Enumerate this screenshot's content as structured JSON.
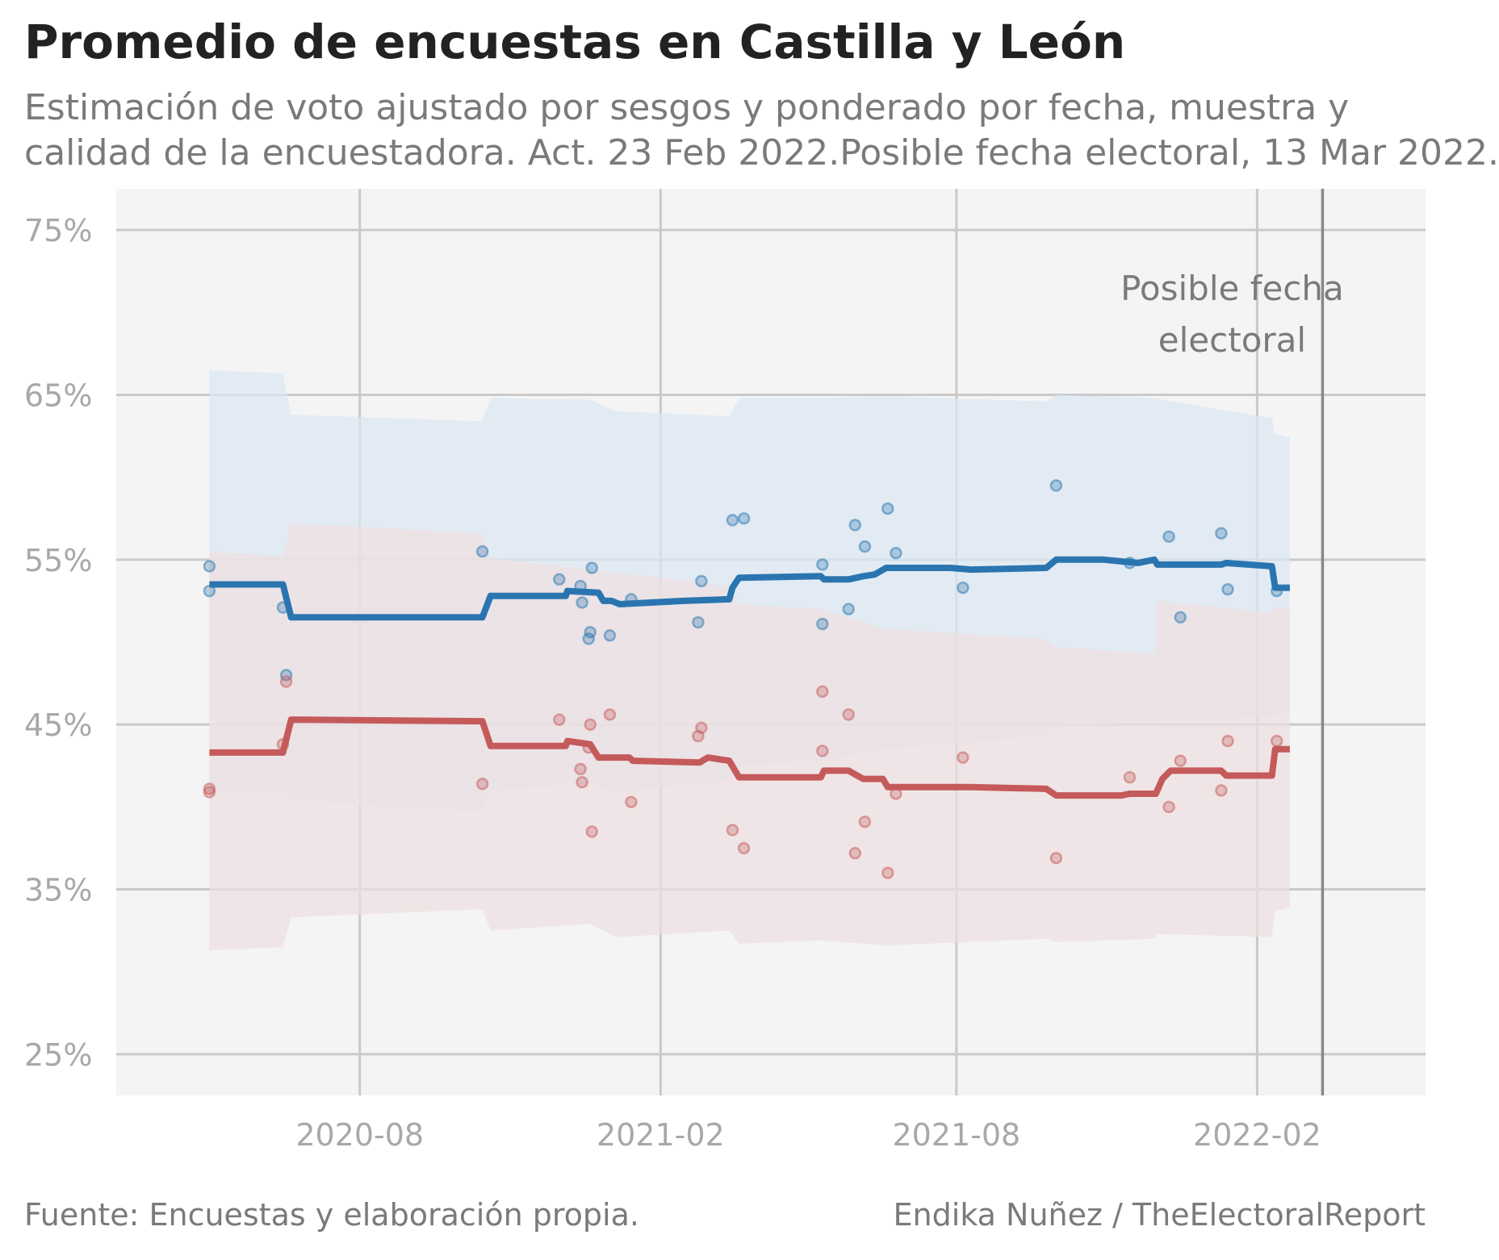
{
  "chart_data": {
    "type": "line",
    "title": "Promedio de encuestas en Castilla y León",
    "subtitle_lines": [
      "Estimación de voto ajustado por sesgos y ponderado por fecha, muestra y",
      "calidad de la encuestadora. Act. 23 Feb 2022.Posible fecha electoral, 13 Mar 2022."
    ],
    "xlabel": "",
    "ylabel": "",
    "xlim": [
      "2020-03-05",
      "2022-05-15"
    ],
    "ylim": [
      22.5,
      77.5
    ],
    "x_ticks": [
      {
        "date": "2020-08-01",
        "label": "2020-08"
      },
      {
        "date": "2021-02-01",
        "label": "2021-02"
      },
      {
        "date": "2021-08-01",
        "label": "2021-08"
      },
      {
        "date": "2022-02-01",
        "label": "2022-02"
      }
    ],
    "y_ticks": [
      {
        "value": 25,
        "label": "25%"
      },
      {
        "value": 35,
        "label": "35%"
      },
      {
        "value": 45,
        "label": "45%"
      },
      {
        "value": 55,
        "label": "55%"
      },
      {
        "value": 65,
        "label": "65%"
      },
      {
        "value": 75,
        "label": "75%"
      }
    ],
    "grid": true,
    "legend": "none",
    "annotation": {
      "date": "2022-03-13",
      "text_lines": [
        "Posible fecha",
        "electoral"
      ]
    },
    "series": [
      {
        "color": "#2a75b0",
        "band_color": "#dbe7f2",
        "line": [
          [
            "2020-05-01",
            53.5
          ],
          [
            "2020-06-15",
            53.5
          ],
          [
            "2020-06-20",
            51.5
          ],
          [
            "2020-10-15",
            51.5
          ],
          [
            "2020-10-20",
            52.8
          ],
          [
            "2020-12-05",
            52.8
          ],
          [
            "2020-12-06",
            53.1
          ],
          [
            "2020-12-25",
            53.0
          ],
          [
            "2020-12-28",
            52.5
          ],
          [
            "2021-01-02",
            52.5
          ],
          [
            "2021-01-07",
            52.3
          ],
          [
            "2021-02-15",
            52.5
          ],
          [
            "2021-03-15",
            52.6
          ],
          [
            "2021-03-17",
            53.3
          ],
          [
            "2021-03-21",
            53.9
          ],
          [
            "2021-05-10",
            54.0
          ],
          [
            "2021-05-12",
            53.8
          ],
          [
            "2021-05-27",
            53.8
          ],
          [
            "2021-06-05",
            54.0
          ],
          [
            "2021-06-12",
            54.1
          ],
          [
            "2021-06-19",
            54.5
          ],
          [
            "2021-07-28",
            54.5
          ],
          [
            "2021-08-10",
            54.4
          ],
          [
            "2021-09-25",
            54.5
          ],
          [
            "2021-10-01",
            55.0
          ],
          [
            "2021-10-30",
            55.0
          ],
          [
            "2021-11-20",
            54.8
          ],
          [
            "2021-11-30",
            55.0
          ],
          [
            "2021-12-02",
            54.7
          ],
          [
            "2022-01-10",
            54.7
          ],
          [
            "2022-01-13",
            54.8
          ],
          [
            "2022-02-10",
            54.6
          ],
          [
            "2022-02-12",
            53.3
          ],
          [
            "2022-02-21",
            53.3
          ]
        ],
        "band": [
          [
            "2020-05-01",
            66.5,
            40.8
          ],
          [
            "2020-06-15",
            66.3,
            40.9
          ],
          [
            "2020-06-20",
            63.8,
            40.4
          ],
          [
            "2020-10-15",
            63.4,
            39.7
          ],
          [
            "2020-10-20",
            64.8,
            41.0
          ],
          [
            "2020-12-20",
            64.7,
            41.4
          ],
          [
            "2021-01-05",
            64.0,
            40.9
          ],
          [
            "2021-03-15",
            63.7,
            41.6
          ],
          [
            "2021-03-21",
            64.8,
            42.5
          ],
          [
            "2021-05-10",
            64.8,
            42.8
          ],
          [
            "2021-06-19",
            64.9,
            43.5
          ],
          [
            "2021-09-25",
            64.6,
            44.3
          ],
          [
            "2021-10-01",
            65.0,
            44.8
          ],
          [
            "2021-11-30",
            64.8,
            45.2
          ],
          [
            "2022-01-15",
            64.0,
            45.4
          ],
          [
            "2022-02-10",
            63.6,
            45.5
          ],
          [
            "2022-02-12",
            62.6,
            45.5
          ],
          [
            "2022-02-21",
            62.4,
            45.7
          ]
        ],
        "polls": [
          [
            "2020-05-01",
            54.6
          ],
          [
            "2020-05-01",
            53.1
          ],
          [
            "2020-06-15",
            52.1
          ],
          [
            "2020-06-17",
            48.0
          ],
          [
            "2020-10-15",
            55.5
          ],
          [
            "2020-12-01",
            53.8
          ],
          [
            "2020-12-14",
            53.4
          ],
          [
            "2020-12-15",
            52.4
          ],
          [
            "2020-12-19",
            50.2
          ],
          [
            "2020-12-20",
            50.6
          ],
          [
            "2020-12-21",
            54.5
          ],
          [
            "2021-01-01",
            50.4
          ],
          [
            "2021-01-14",
            52.6
          ],
          [
            "2021-02-24",
            51.2
          ],
          [
            "2021-02-26",
            53.7
          ],
          [
            "2021-03-17",
            57.4
          ],
          [
            "2021-03-24",
            57.5
          ],
          [
            "2021-05-11",
            54.7
          ],
          [
            "2021-05-11",
            51.1
          ],
          [
            "2021-05-27",
            52.0
          ],
          [
            "2021-05-31",
            57.1
          ],
          [
            "2021-06-06",
            55.8
          ],
          [
            "2021-06-20",
            58.1
          ],
          [
            "2021-06-25",
            55.4
          ],
          [
            "2021-08-05",
            53.3
          ],
          [
            "2021-10-01",
            59.5
          ],
          [
            "2021-11-15",
            54.8
          ],
          [
            "2021-12-09",
            56.4
          ],
          [
            "2021-12-16",
            51.5
          ],
          [
            "2022-01-10",
            56.6
          ],
          [
            "2022-01-14",
            53.2
          ],
          [
            "2022-02-13",
            53.1
          ]
        ]
      },
      {
        "color": "#c55a5a",
        "band_color": "#efdfe0",
        "line": [
          [
            "2020-05-01",
            43.3
          ],
          [
            "2020-06-15",
            43.3
          ],
          [
            "2020-06-20",
            45.3
          ],
          [
            "2020-10-15",
            45.2
          ],
          [
            "2020-10-20",
            43.7
          ],
          [
            "2020-12-05",
            43.7
          ],
          [
            "2020-12-06",
            44.0
          ],
          [
            "2020-12-20",
            43.8
          ],
          [
            "2020-12-25",
            43.0
          ],
          [
            "2021-01-13",
            43.0
          ],
          [
            "2021-01-15",
            42.8
          ],
          [
            "2021-02-25",
            42.7
          ],
          [
            "2021-03-02",
            43.0
          ],
          [
            "2021-03-15",
            42.8
          ],
          [
            "2021-03-21",
            41.8
          ],
          [
            "2021-05-10",
            41.8
          ],
          [
            "2021-05-12",
            42.2
          ],
          [
            "2021-05-27",
            42.2
          ],
          [
            "2021-06-05",
            41.7
          ],
          [
            "2021-06-17",
            41.7
          ],
          [
            "2021-06-20",
            41.2
          ],
          [
            "2021-08-10",
            41.2
          ],
          [
            "2021-09-25",
            41.1
          ],
          [
            "2021-10-01",
            40.7
          ],
          [
            "2021-11-10",
            40.7
          ],
          [
            "2021-11-15",
            40.8
          ],
          [
            "2021-12-01",
            40.8
          ],
          [
            "2021-12-05",
            41.7
          ],
          [
            "2021-12-10",
            42.2
          ],
          [
            "2022-01-10",
            42.2
          ],
          [
            "2022-01-13",
            41.9
          ],
          [
            "2022-02-10",
            41.9
          ],
          [
            "2022-02-12",
            43.5
          ],
          [
            "2022-02-21",
            43.5
          ]
        ],
        "band": [
          [
            "2020-05-01",
            55.5,
            31.3
          ],
          [
            "2020-06-15",
            55.2,
            31.5
          ],
          [
            "2020-06-20",
            57.2,
            33.3
          ],
          [
            "2020-10-15",
            56.6,
            33.8
          ],
          [
            "2020-10-20",
            55.1,
            32.5
          ],
          [
            "2020-12-20",
            54.4,
            32.9
          ],
          [
            "2021-01-05",
            54.2,
            32.1
          ],
          [
            "2021-03-15",
            53.4,
            32.5
          ],
          [
            "2021-03-21",
            52.3,
            31.7
          ],
          [
            "2021-05-10",
            52.0,
            31.9
          ],
          [
            "2021-06-19",
            50.8,
            31.6
          ],
          [
            "2021-09-25",
            50.2,
            32.0
          ],
          [
            "2021-10-01",
            49.7,
            31.8
          ],
          [
            "2021-11-30",
            49.3,
            32.0
          ],
          [
            "2021-12-02",
            52.5,
            32.3
          ],
          [
            "2022-02-10",
            51.8,
            32.1
          ],
          [
            "2022-02-12",
            52.2,
            33.7
          ],
          [
            "2022-02-21",
            52.0,
            33.9
          ]
        ],
        "polls": [
          [
            "2020-05-01",
            41.1
          ],
          [
            "2020-05-01",
            40.9
          ],
          [
            "2020-06-15",
            43.8
          ],
          [
            "2020-06-17",
            47.6
          ],
          [
            "2020-10-15",
            41.4
          ],
          [
            "2020-12-01",
            45.3
          ],
          [
            "2020-12-14",
            42.3
          ],
          [
            "2020-12-15",
            41.5
          ],
          [
            "2020-12-19",
            43.6
          ],
          [
            "2020-12-20",
            45.0
          ],
          [
            "2020-12-21",
            38.5
          ],
          [
            "2021-01-01",
            45.6
          ],
          [
            "2021-01-14",
            40.3
          ],
          [
            "2021-02-24",
            44.3
          ],
          [
            "2021-02-26",
            44.8
          ],
          [
            "2021-03-17",
            38.6
          ],
          [
            "2021-03-24",
            37.5
          ],
          [
            "2021-05-11",
            47.0
          ],
          [
            "2021-05-11",
            43.4
          ],
          [
            "2021-05-27",
            45.6
          ],
          [
            "2021-05-31",
            37.2
          ],
          [
            "2021-06-06",
            39.1
          ],
          [
            "2021-06-20",
            36.0
          ],
          [
            "2021-06-25",
            40.8
          ],
          [
            "2021-08-05",
            43.0
          ],
          [
            "2021-10-01",
            36.9
          ],
          [
            "2021-11-15",
            41.8
          ],
          [
            "2021-12-09",
            40.0
          ],
          [
            "2021-12-16",
            42.8
          ],
          [
            "2022-01-10",
            41.0
          ],
          [
            "2022-01-14",
            44.0
          ],
          [
            "2022-02-13",
            44.0
          ]
        ]
      }
    ]
  },
  "footer": {
    "source": "Fuente: Encuestas y elaboración propia.",
    "credit": "Endika Nuñez / TheElectoralReport"
  }
}
